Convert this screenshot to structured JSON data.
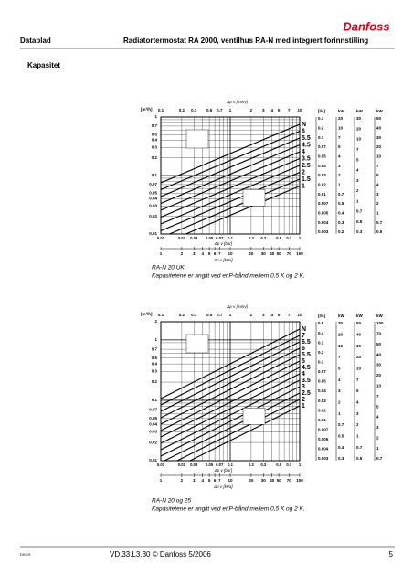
{
  "header": {
    "left": "Datablad",
    "title": "Radiatortermostat RA 2000, ventilhus RA-N med integrert forinnstilling"
  },
  "section": "Kapasitet",
  "charts": [
    {
      "top_title": "Δp v [mmv]",
      "top_ticks": [
        "0.1",
        "0.2",
        "0.3",
        "0.5",
        "0.7",
        "1",
        "2",
        "3",
        "4",
        "5",
        "7",
        "10"
      ],
      "left_unit": "[m³/h]",
      "left_ticks": [
        "1",
        "0.7",
        "0.5",
        "0.4",
        "0.3",
        "0.2",
        "0.1",
        "0.07",
        "0.05",
        "0.04",
        "0.03",
        "0.02",
        "0.01"
      ],
      "bottom_ticks": [
        "0.01",
        "0.02",
        "0.03",
        "0.05",
        "0.07",
        "0.1",
        "0.2",
        "0.3",
        "0.5",
        "0.7",
        "1"
      ],
      "bottom_title": "Δp v [bar]",
      "kpa_ticks": [
        "1",
        "2",
        "3",
        "4",
        "5",
        "6",
        "7",
        "10",
        "20",
        "30",
        "40",
        "50",
        "70",
        "100"
      ],
      "kpa_title": "Δp v [kPa]",
      "settings": [
        "N",
        "6",
        "5.5",
        "4.5",
        "4",
        "3.5",
        "2.5",
        "2",
        "1.5",
        "1"
      ],
      "ls_unit": "[l/s]",
      "ls_ticks": [
        "0.3",
        "0.2",
        "0.1",
        "0.07",
        "0.05",
        "0.04",
        "0.03",
        "0.02",
        "0.01",
        "0.007",
        "0.005",
        "0.004",
        "0.003"
      ],
      "kw_unit": "kW",
      "kw1_ticks": [
        "20",
        "10",
        "7",
        "5",
        "4",
        "3",
        "2",
        "1",
        "0.7",
        "0.5",
        "0.4",
        "0.3",
        "0.2"
      ],
      "kw2_ticks": [
        "30",
        "20",
        "10",
        "7",
        "5",
        "4",
        "3",
        "2",
        "1",
        "0.7",
        "0.5",
        "0.3"
      ],
      "kw3_ticks": [
        "50",
        "40",
        "30",
        "20",
        "10",
        "7",
        "5",
        "4",
        "3",
        "2",
        "1",
        "0.7",
        "0.5"
      ],
      "caption_title": "RA-N 20  UK",
      "caption_text": "Kapasitetene er angitt ved et P-bånd mellem 0,5 K og 2 K."
    },
    {
      "top_title": "Δp v [mmv]",
      "top_ticks": [
        "0.1",
        "0.2",
        "0.3",
        "0.5",
        "0.7",
        "1",
        "2",
        "3",
        "4",
        "5",
        "7",
        "10"
      ],
      "left_unit": "[m³/h]",
      "left_ticks": [
        "2",
        "1",
        "0.7",
        "0.5",
        "0.4",
        "0.3",
        "0.2",
        "0.1",
        "0.07",
        "0.05",
        "0.04",
        "0.03",
        "0.02",
        "0.01"
      ],
      "bottom_ticks": [
        "0.01",
        "0.02",
        "0.03",
        "0.05",
        "0.07",
        "0.1",
        "0.2",
        "0.3",
        "0.5",
        "0.7",
        "1"
      ],
      "bottom_title": "Δp v [bar]",
      "kpa_ticks": [
        "1",
        "2",
        "3",
        "4",
        "5",
        "6",
        "7",
        "10",
        "20",
        "30",
        "40",
        "50",
        "70",
        "100"
      ],
      "kpa_title": "Δp v [kPa]",
      "settings": [
        "N",
        "7",
        "6.5",
        "6",
        "5.5",
        "5",
        "4.5",
        "4",
        "3.5",
        "3",
        "2.5",
        "2",
        "1"
      ],
      "ls_unit": "[l/s]",
      "ls_ticks": [
        "0.5",
        "0.4",
        "0.3",
        "0.2",
        "0.1",
        "0.07",
        "0.05",
        "0.04",
        "0.03",
        "0.02",
        "0.01",
        "0.007",
        "0.005",
        "0.004",
        "0.003"
      ],
      "kw_unit": "kW",
      "kw1_ticks": [
        "30",
        "20",
        "10",
        "7",
        "5",
        "4",
        "3",
        "2",
        "1",
        "0.7",
        "0.5",
        "0.4",
        "0.3"
      ],
      "kw2_ticks": [
        "50",
        "40",
        "30",
        "20",
        "10",
        "7",
        "5",
        "4",
        "3",
        "2",
        "1",
        "0.7",
        "0.5"
      ],
      "kw3_ticks": [
        "100",
        "70",
        "50",
        "40",
        "30",
        "20",
        "10",
        "7",
        "5",
        "4",
        "3",
        "2",
        "1",
        "0.7"
      ],
      "caption_title": "RA-N 20 og 25",
      "caption_text": "Kapasitetene er angitt ved et P-bånd mellem 0,5 K og 2 K."
    }
  ],
  "footer": {
    "code": "DKCR",
    "ref": "VD.33.L3.30   © Danfoss   5/2006",
    "page": "5"
  }
}
